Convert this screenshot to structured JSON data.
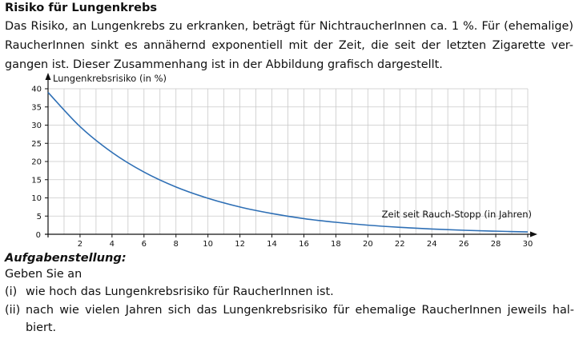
{
  "heading": "Risiko für Lungenkrebs",
  "intro": {
    "line1": "Das Risiko, an Lungenkrebs zu erkranken, beträgt für NichtraucherInnen ca. 1 %. Für (ehemalige)",
    "line2": "RaucherInnen sinkt es annähernd exponentiell mit der Zeit, die seit der letzten Zigarette ver-",
    "line3": "gangen ist. Dieser Zusammenhang ist in der Abbildung grafisch dargestellt."
  },
  "chart_data": {
    "type": "line",
    "ylabel": "Lungenkrebsrisiko (in %)",
    "xlabel": "Zeit seit Rauch-Stopp (in Jahren)",
    "xlim": [
      0,
      30
    ],
    "ylim": [
      0,
      40
    ],
    "x_ticks": [
      2,
      4,
      6,
      8,
      10,
      12,
      14,
      16,
      18,
      20,
      22,
      24,
      26,
      28,
      30
    ],
    "y_ticks": [
      5,
      10,
      15,
      20,
      25,
      30,
      35,
      40
    ],
    "origin_label": "0",
    "grid": true,
    "x_minor_step": 1,
    "series": [
      {
        "x": [
          0,
          2,
          4,
          6,
          8,
          10,
          12,
          14,
          16,
          18,
          20,
          22,
          24,
          26,
          28,
          30
        ],
        "y": [
          39,
          29.6,
          22.5,
          17.1,
          13.0,
          9.9,
          7.5,
          5.7,
          4.3,
          3.3,
          2.5,
          1.9,
          1.45,
          1.1,
          0.85,
          0.64
        ]
      }
    ],
    "line_color": "#2e6fb5",
    "grid_color": "#c9c9c9"
  },
  "task": {
    "heading": "Aufgabenstellung:",
    "lead": "Geben Sie an",
    "items": [
      {
        "num": "(i)",
        "line1": "wie hoch das Lungenkrebsrisiko für RaucherInnen ist."
      },
      {
        "num": "(ii)",
        "line1": "nach wie vielen Jahren sich das Lungenkrebsrisiko für ehemalige RaucherInnen jeweils hal-",
        "line2": "biert."
      }
    ]
  }
}
